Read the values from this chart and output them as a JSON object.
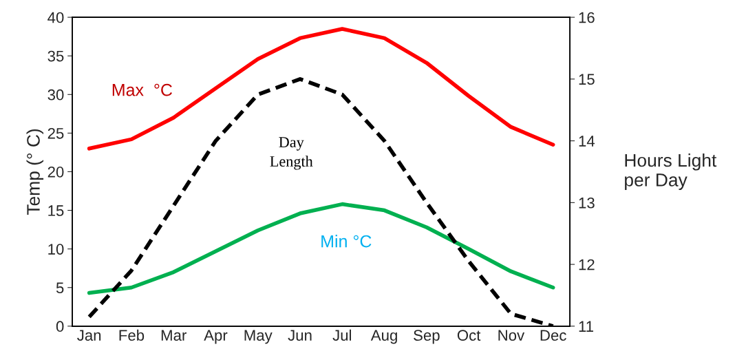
{
  "chart_data": {
    "type": "line",
    "ylabel": "Temp (° C)",
    "y2label": "Hours Light\nper Day",
    "categories": [
      "Jan",
      "Feb",
      "Mar",
      "Apr",
      "May",
      "Jun",
      "Jul",
      "Aug",
      "Sep",
      "Oct",
      "Nov",
      "Dec"
    ],
    "ylim": [
      0,
      40
    ],
    "yticks": [
      0,
      5,
      10,
      15,
      20,
      25,
      30,
      35,
      40
    ],
    "y2lim": [
      11,
      16
    ],
    "y2ticks": [
      11,
      12,
      13,
      14,
      15,
      16
    ],
    "grid": false,
    "legend": false,
    "series": [
      {
        "color": "#ff0000",
        "line_style": "solid",
        "values": [
          23.0,
          24.2,
          27.0,
          30.8,
          34.6,
          37.3,
          38.5,
          37.3,
          34.1,
          29.8,
          25.8,
          23.5
        ]
      },
      {
        "color": "#00b050",
        "line_style": "solid",
        "values": [
          4.3,
          5.0,
          7.0,
          9.7,
          12.4,
          14.6,
          15.8,
          15.0,
          12.8,
          10.0,
          7.1,
          5.0
        ]
      },
      {
        "color": "#000000",
        "line_style": "dashed",
        "axis": "y2",
        "values": [
          11.15,
          11.9,
          12.95,
          14.0,
          14.75,
          15.0,
          14.75,
          14.0,
          13.0,
          12.05,
          11.2,
          11.0
        ]
      }
    ],
    "annotations": [
      "Max  °C",
      "Day\nLength",
      "Min °C"
    ]
  }
}
